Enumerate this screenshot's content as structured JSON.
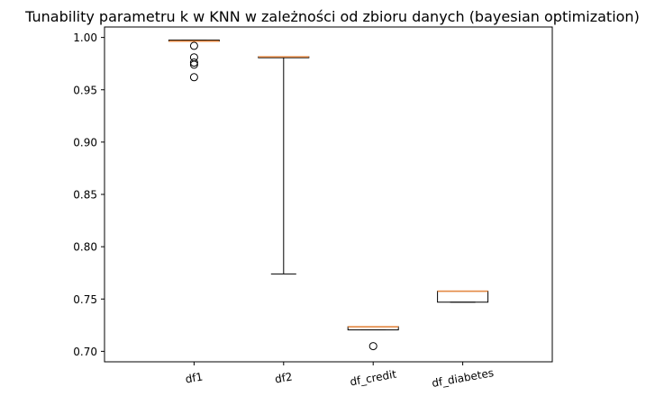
{
  "chart_data": {
    "type": "box",
    "title": "Tunability parametru k w KNN w zależności od zbioru danych (bayesian optimization)",
    "xlabel": "",
    "ylabel": "",
    "ylim": [
      0.69,
      1.01
    ],
    "yticks": [
      0.7,
      0.75,
      0.8,
      0.85,
      0.9,
      0.95,
      1.0
    ],
    "ytick_labels": [
      "0.70",
      "0.75",
      "0.80",
      "0.85",
      "0.90",
      "0.95",
      "1.00"
    ],
    "categories": [
      "df1",
      "df2",
      "df_credit",
      "df_diabetes"
    ],
    "boxes": [
      {
        "name": "df1",
        "whisker_low": 0.9965,
        "q1": 0.9965,
        "median": 0.9965,
        "q3": 0.9975,
        "whisker_high": 0.9975,
        "outliers": [
          0.992,
          0.981,
          0.976,
          0.974,
          0.962
        ]
      },
      {
        "name": "df2",
        "whisker_low": 0.774,
        "q1": 0.9815,
        "median": 0.9815,
        "q3": 0.9815,
        "whisker_high": 0.9815,
        "outliers": []
      },
      {
        "name": "df_credit",
        "whisker_low": 0.7205,
        "q1": 0.7205,
        "median": 0.7235,
        "q3": 0.7235,
        "whisker_high": 0.7235,
        "outliers": [
          0.705
        ]
      },
      {
        "name": "df_diabetes",
        "whisker_low": 0.747,
        "q1": 0.747,
        "median": 0.7575,
        "q3": 0.7575,
        "whisker_high": 0.7575,
        "outliers": []
      }
    ],
    "colors": {
      "box": "#000000",
      "median": "#e58a45"
    },
    "grid": false,
    "legend": "none"
  }
}
